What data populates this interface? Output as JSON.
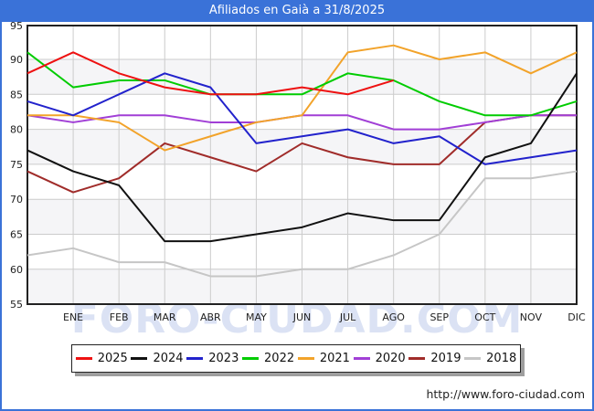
{
  "header": {
    "title": "Afiliados en Gaià a 31/8/2025",
    "background_color": "#3a72d8"
  },
  "watermark": {
    "text": "FORO-CIUDAD.COM"
  },
  "footer": {
    "url": "http://www.foro-ciudad.com"
  },
  "chart_data": {
    "type": "line",
    "title": "Afiliados en Gaià a 31/8/2025",
    "xlabel": "",
    "ylabel": "",
    "ylim": [
      55,
      95
    ],
    "y_ticks": [
      95,
      90,
      85,
      80,
      75,
      70,
      65,
      60,
      55
    ],
    "months": [
      "ENE",
      "FEB",
      "MAR",
      "ABR",
      "MAY",
      "JUN",
      "JUL",
      "AGO",
      "SEP",
      "OCT",
      "NOV",
      "DIC"
    ],
    "grid": true,
    "legend_position": "bottom",
    "note": "First value of each series is the previous-year December value plotted at the left axis; 2025 series ends in AGO (data to 31/8/2025).",
    "series": [
      {
        "name": "2025",
        "color": "#ee1111",
        "values": [
          88,
          91,
          88,
          86,
          85,
          85,
          86,
          85,
          87
        ]
      },
      {
        "name": "2024",
        "color": "#111111",
        "values": [
          77,
          74,
          72,
          64,
          64,
          65,
          66,
          68,
          67,
          67,
          76,
          78,
          88
        ]
      },
      {
        "name": "2023",
        "color": "#2222cc",
        "values": [
          84,
          82,
          85,
          88,
          86,
          78,
          79,
          80,
          78,
          79,
          75,
          76,
          77
        ]
      },
      {
        "name": "2022",
        "color": "#00cc00",
        "values": [
          91,
          86,
          87,
          87,
          85,
          85,
          85,
          88,
          87,
          84,
          82,
          82,
          84
        ]
      },
      {
        "name": "2021",
        "color": "#f2a32a",
        "values": [
          82,
          82,
          81,
          77,
          79,
          81,
          82,
          91,
          92,
          90,
          91,
          88,
          91
        ]
      },
      {
        "name": "2020",
        "color": "#a13fd6",
        "values": [
          82,
          81,
          82,
          82,
          81,
          81,
          82,
          82,
          80,
          80,
          81,
          82,
          82
        ]
      },
      {
        "name": "2019",
        "color": "#a02c2a",
        "values": [
          74,
          71,
          73,
          78,
          76,
          74,
          78,
          76,
          75,
          75,
          81,
          82,
          82
        ]
      },
      {
        "name": "2018",
        "color": "#c6c6c6",
        "values": [
          62,
          63,
          61,
          61,
          59,
          59,
          60,
          60,
          62,
          65,
          73,
          73,
          74
        ]
      }
    ]
  }
}
